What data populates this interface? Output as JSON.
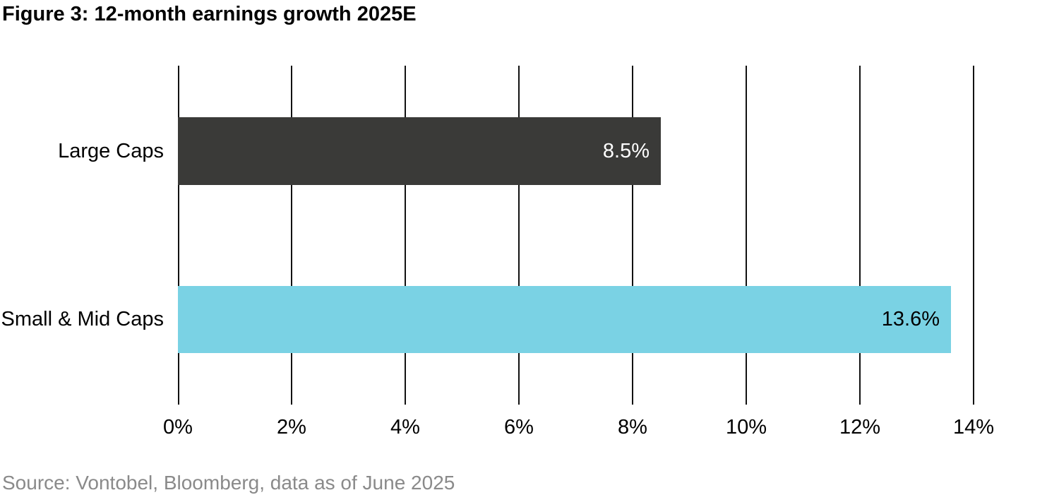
{
  "chart_data": {
    "type": "bar",
    "orientation": "horizontal",
    "title": "Figure 3: 12-month earnings growth 2025E",
    "categories": [
      "Large Caps",
      "Small & Mid Caps"
    ],
    "values": [
      8.5,
      13.6
    ],
    "value_labels": [
      "8.5%",
      "13.6%"
    ],
    "bar_colors": [
      "#3a3a38",
      "#7ad2e4"
    ],
    "value_label_colors": [
      "#ffffff",
      "#000000"
    ],
    "xlim": [
      0,
      14
    ],
    "xticks": [
      0,
      2,
      4,
      6,
      8,
      10,
      12,
      14
    ],
    "xtick_labels": [
      "0%",
      "2%",
      "4%",
      "6%",
      "8%",
      "10%",
      "12%",
      "14%"
    ],
    "xlabel": "",
    "ylabel": "",
    "grid": "vertical-gridlines-only",
    "gridline_color": "#111111",
    "legend": "none"
  },
  "footer": {
    "source": "Source: Vontobel, Bloomberg, data as of June 2025",
    "source_color": "#8a8a8a"
  }
}
